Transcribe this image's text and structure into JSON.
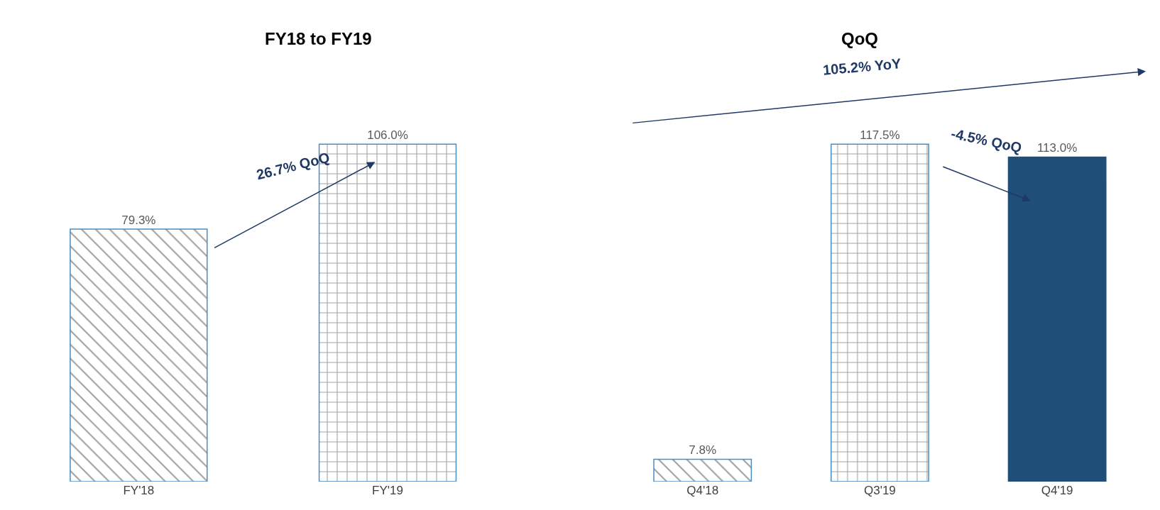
{
  "chart_data": [
    {
      "type": "bar",
      "title": "FY18 to FY19",
      "categories": [
        "FY'18",
        "FY'19"
      ],
      "values": [
        79.3,
        106.0
      ],
      "value_labels": [
        "79.3%",
        "106.0%"
      ],
      "colors": [
        "#4a8cc4",
        "#4a8cc4"
      ],
      "annotations": [
        "26.7% QoQ"
      ]
    },
    {
      "type": "bar",
      "title": "QoQ",
      "categories": [
        "Q4'18",
        "Q3'19",
        "Q4'19"
      ],
      "values": [
        7.8,
        117.5,
        113.0
      ],
      "value_labels": [
        "7.8%",
        "117.5%",
        "113.0%"
      ],
      "colors": [
        "#4a8cc4",
        "#4a8cc4",
        "#1f4e79"
      ],
      "annotations": [
        "105.2% YoY",
        "-4.5% QoQ"
      ]
    }
  ]
}
